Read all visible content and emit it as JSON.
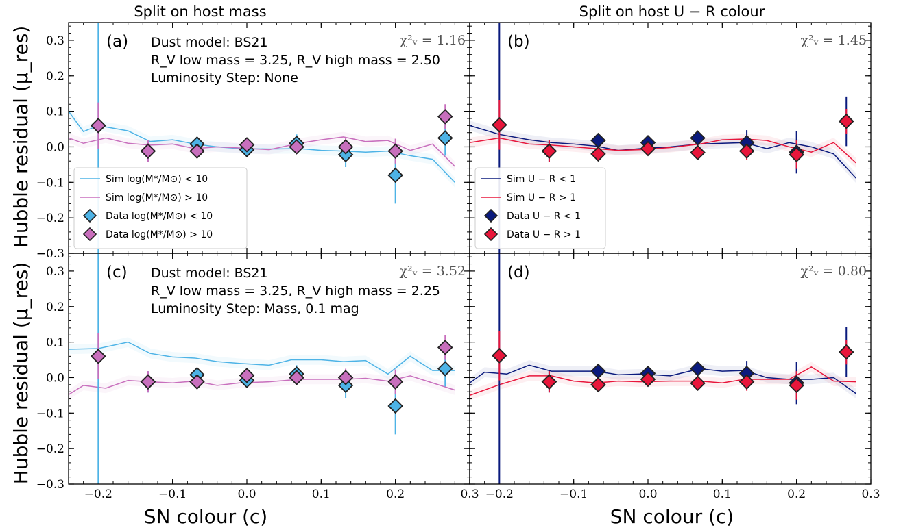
{
  "column_titles": [
    "Split on host mass",
    "Split on host U − R colour"
  ],
  "xlabel": "SN colour (c)",
  "ylabel": "Hubble residual (μ_res)",
  "colors": {
    "light_blue": "#4db3e6",
    "pink": "#c86fbd",
    "navy": "#0a1a7d",
    "crimson": "#e8163b"
  },
  "chart_data": [
    {
      "id": "a",
      "type": "line",
      "panel_label": "(a)",
      "chi2": "χ²ᵥ = 1.16",
      "annotations": [
        "Dust model: BS21",
        "R_V low mass = 3.25, R_V high mass = 2.50",
        "Luminosity Step: None"
      ],
      "xlim": [
        -0.24,
        0.3
      ],
      "ylim": [
        -0.3,
        0.35
      ],
      "legend": {
        "position": "lower-left",
        "entries": [
          "Sim log(M*/M⊙) < 10",
          "Sim log(M*/M⊙) > 10",
          "Data log(M*/M⊙) < 10",
          "Data log(M*/M⊙) > 10"
        ]
      },
      "series": [
        {
          "name": "Sim log(M*/M⊙) < 10",
          "kind": "line",
          "color": "light_blue",
          "x": [
            -0.24,
            -0.22,
            -0.2,
            -0.16,
            -0.13,
            -0.1,
            -0.07,
            -0.04,
            -0.01,
            0.03,
            0.07,
            0.1,
            0.13,
            0.16,
            0.19,
            0.22,
            0.25,
            0.28
          ],
          "y": [
            0.1,
            0.043,
            0.06,
            0.045,
            0.015,
            0.02,
            0.008,
            0.0,
            -0.005,
            -0.006,
            -0.005,
            -0.01,
            -0.012,
            -0.015,
            -0.012,
            -0.025,
            -0.035,
            -0.1
          ]
        },
        {
          "name": "Sim log(M*/M⊙) > 10",
          "kind": "line",
          "color": "pink",
          "x": [
            -0.24,
            -0.22,
            -0.19,
            -0.16,
            -0.13,
            -0.1,
            -0.07,
            -0.04,
            -0.01,
            0.03,
            0.07,
            0.1,
            0.13,
            0.16,
            0.19,
            0.22,
            0.25,
            0.28
          ],
          "y": [
            0.025,
            0.01,
            0.025,
            0.01,
            0.005,
            0.008,
            -0.005,
            0.0,
            -0.003,
            -0.008,
            0.01,
            0.02,
            0.028,
            0.015,
            0.018,
            -0.01,
            0.008,
            -0.055
          ]
        },
        {
          "name": "Data log(M*/M⊙) < 10",
          "kind": "scatter",
          "color": "light_blue",
          "x": [
            -0.2,
            -0.133,
            -0.067,
            0.0,
            0.067,
            0.133,
            0.2,
            0.267
          ],
          "y": [
            0.06,
            -0.012,
            0.008,
            -0.008,
            0.01,
            -0.022,
            -0.08,
            0.025
          ],
          "err": [
            0.4,
            0.03,
            0.02,
            0.015,
            0.025,
            0.035,
            0.08,
            0.05
          ]
        },
        {
          "name": "Data log(M*/M⊙) > 10",
          "kind": "scatter",
          "color": "pink",
          "x": [
            -0.2,
            -0.133,
            -0.067,
            0.0,
            0.067,
            0.133,
            0.2,
            0.267
          ],
          "y": [
            0.06,
            -0.012,
            -0.012,
            0.006,
            0.0,
            0.0,
            -0.012,
            0.085
          ],
          "err": [
            0.065,
            0.03,
            0.02,
            0.015,
            0.02,
            0.025,
            0.035,
            0.035
          ]
        }
      ]
    },
    {
      "id": "b",
      "type": "line",
      "panel_label": "(b)",
      "chi2": "χ²ᵥ = 1.45",
      "annotations": [],
      "xlim": [
        -0.24,
        0.3
      ],
      "ylim": [
        -0.3,
        0.35
      ],
      "legend": {
        "position": "lower-left",
        "entries": [
          "Sim U − R < 1",
          "Sim U − R > 1",
          "Data U − R < 1",
          "Data U − R > 1"
        ]
      },
      "series": [
        {
          "name": "Sim U − R < 1",
          "kind": "line",
          "color": "navy",
          "x": [
            -0.24,
            -0.2,
            -0.16,
            -0.13,
            -0.1,
            -0.07,
            -0.04,
            -0.01,
            0.03,
            0.07,
            0.1,
            0.13,
            0.16,
            0.19,
            0.22,
            0.25,
            0.28
          ],
          "y": [
            0.06,
            0.035,
            0.02,
            0.012,
            0.008,
            0.002,
            -0.01,
            -0.005,
            0.0,
            0.008,
            0.01,
            0.012,
            -0.005,
            0.012,
            0.0,
            -0.02,
            -0.088
          ]
        },
        {
          "name": "Sim U − R > 1",
          "kind": "line",
          "color": "crimson",
          "x": [
            -0.24,
            -0.2,
            -0.16,
            -0.13,
            -0.1,
            -0.07,
            -0.04,
            -0.01,
            0.03,
            0.07,
            0.1,
            0.13,
            0.16,
            0.19,
            0.22,
            0.25,
            0.28
          ],
          "y": [
            0.012,
            0.025,
            0.008,
            0.005,
            0.0,
            -0.005,
            -0.01,
            -0.008,
            -0.002,
            0.008,
            0.02,
            0.022,
            0.018,
            0.0,
            -0.015,
            0.012,
            -0.045
          ]
        },
        {
          "name": "Data U − R < 1",
          "kind": "scatter",
          "color": "navy",
          "x": [
            -0.2,
            -0.133,
            -0.067,
            0.0,
            0.067,
            0.133,
            0.2,
            0.267
          ],
          "y": [
            0.062,
            -0.012,
            0.018,
            0.012,
            0.025,
            0.012,
            -0.015,
            0.072
          ],
          "err": [
            0.4,
            0.03,
            0.02,
            0.015,
            0.02,
            0.035,
            0.06,
            0.07
          ]
        },
        {
          "name": "Data U − R > 1",
          "kind": "scatter",
          "color": "crimson",
          "x": [
            -0.2,
            -0.133,
            -0.067,
            0.0,
            0.067,
            0.133,
            0.2,
            0.267
          ],
          "y": [
            0.062,
            -0.012,
            -0.02,
            -0.005,
            -0.016,
            -0.012,
            -0.022,
            0.072
          ],
          "err": [
            0.07,
            0.03,
            0.02,
            0.015,
            0.02,
            0.025,
            0.04,
            0.035
          ]
        }
      ]
    },
    {
      "id": "c",
      "type": "line",
      "panel_label": "(c)",
      "chi2": "χ²ᵥ = 3.52",
      "annotations": [
        "Dust model: BS21",
        "R_V low mass = 3.25, R_V high mass = 2.25",
        "Luminosity Step: Mass, 0.1 mag"
      ],
      "xlim": [
        -0.24,
        0.3
      ],
      "ylim": [
        -0.3,
        0.35
      ],
      "legend": null,
      "series": [
        {
          "name": "Sim log(M*/M⊙) < 10",
          "kind": "line",
          "color": "light_blue",
          "x": [
            -0.24,
            -0.2,
            -0.16,
            -0.13,
            -0.1,
            -0.07,
            -0.04,
            -0.01,
            0.03,
            0.06,
            0.1,
            0.13,
            0.16,
            0.19,
            0.22,
            0.25,
            0.28
          ],
          "y": [
            0.08,
            0.082,
            0.1,
            0.068,
            0.058,
            0.055,
            0.045,
            0.04,
            0.035,
            0.05,
            0.05,
            0.045,
            0.048,
            0.01,
            0.06,
            0.02,
            0.02
          ]
        },
        {
          "name": "Sim log(M*/M⊙) > 10",
          "kind": "line",
          "color": "pink",
          "x": [
            -0.24,
            -0.22,
            -0.19,
            -0.16,
            -0.13,
            -0.1,
            -0.07,
            -0.04,
            -0.01,
            0.03,
            0.07,
            0.1,
            0.13,
            0.16,
            0.19,
            0.22,
            0.25,
            0.28
          ],
          "y": [
            -0.048,
            -0.022,
            -0.03,
            -0.008,
            -0.012,
            -0.015,
            -0.01,
            -0.022,
            -0.015,
            -0.012,
            -0.005,
            -0.005,
            -0.005,
            -0.002,
            -0.01,
            0.005,
            -0.015,
            -0.035
          ]
        },
        {
          "name": "Data log(M*/M⊙) < 10",
          "kind": "scatter",
          "color": "light_blue",
          "x": [
            -0.2,
            -0.133,
            -0.067,
            0.0,
            0.067,
            0.133,
            0.2,
            0.267
          ],
          "y": [
            0.06,
            -0.012,
            0.008,
            -0.008,
            0.01,
            -0.022,
            -0.08,
            0.025
          ],
          "err": [
            0.4,
            0.03,
            0.02,
            0.015,
            0.025,
            0.035,
            0.08,
            0.05
          ]
        },
        {
          "name": "Data log(M*/M⊙) > 10",
          "kind": "scatter",
          "color": "pink",
          "x": [
            -0.2,
            -0.133,
            -0.067,
            0.0,
            0.067,
            0.133,
            0.2,
            0.267
          ],
          "y": [
            0.06,
            -0.012,
            -0.012,
            0.006,
            0.0,
            0.0,
            -0.012,
            0.085
          ],
          "err": [
            0.065,
            0.03,
            0.02,
            0.015,
            0.02,
            0.025,
            0.035,
            0.035
          ]
        }
      ]
    },
    {
      "id": "d",
      "type": "line",
      "panel_label": "(d)",
      "chi2": "χ²ᵥ = 0.80",
      "annotations": [],
      "xlim": [
        -0.24,
        0.3
      ],
      "ylim": [
        -0.3,
        0.35
      ],
      "legend": null,
      "series": [
        {
          "name": "Sim U − R < 1",
          "kind": "line",
          "color": "navy",
          "x": [
            -0.24,
            -0.22,
            -0.19,
            -0.16,
            -0.13,
            -0.1,
            -0.07,
            -0.04,
            -0.01,
            0.03,
            0.07,
            0.1,
            0.13,
            0.16,
            0.19,
            0.22,
            0.25,
            0.28
          ],
          "y": [
            -0.015,
            0.015,
            0.01,
            0.035,
            0.018,
            0.018,
            0.018,
            0.008,
            0.01,
            0.005,
            0.025,
            0.018,
            0.02,
            0.0,
            -0.005,
            -0.005,
            0.0,
            -0.045
          ]
        },
        {
          "name": "Sim U − R > 1",
          "kind": "line",
          "color": "crimson",
          "x": [
            -0.24,
            -0.2,
            -0.16,
            -0.13,
            -0.1,
            -0.07,
            -0.04,
            -0.01,
            0.03,
            0.07,
            0.1,
            0.13,
            0.16,
            0.19,
            0.22,
            0.25,
            0.28
          ],
          "y": [
            -0.05,
            -0.02,
            0.005,
            0.005,
            -0.01,
            -0.015,
            -0.01,
            -0.012,
            -0.01,
            -0.01,
            -0.015,
            -0.005,
            -0.005,
            -0.005,
            0.03,
            -0.01,
            -0.012
          ]
        },
        {
          "name": "Data U − R < 1",
          "kind": "scatter",
          "color": "navy",
          "x": [
            -0.2,
            -0.133,
            -0.067,
            0.0,
            0.067,
            0.133,
            0.2,
            0.267
          ],
          "y": [
            0.062,
            -0.012,
            0.018,
            0.012,
            0.025,
            0.012,
            -0.015,
            0.072
          ],
          "err": [
            0.4,
            0.03,
            0.02,
            0.015,
            0.02,
            0.035,
            0.06,
            0.07
          ]
        },
        {
          "name": "Data U − R > 1",
          "kind": "scatter",
          "color": "crimson",
          "x": [
            -0.2,
            -0.133,
            -0.067,
            0.0,
            0.067,
            0.133,
            0.2,
            0.267
          ],
          "y": [
            0.062,
            -0.012,
            -0.02,
            -0.005,
            -0.016,
            -0.012,
            -0.022,
            0.072
          ],
          "err": [
            0.07,
            0.03,
            0.02,
            0.015,
            0.02,
            0.025,
            0.04,
            0.035
          ]
        }
      ]
    }
  ]
}
